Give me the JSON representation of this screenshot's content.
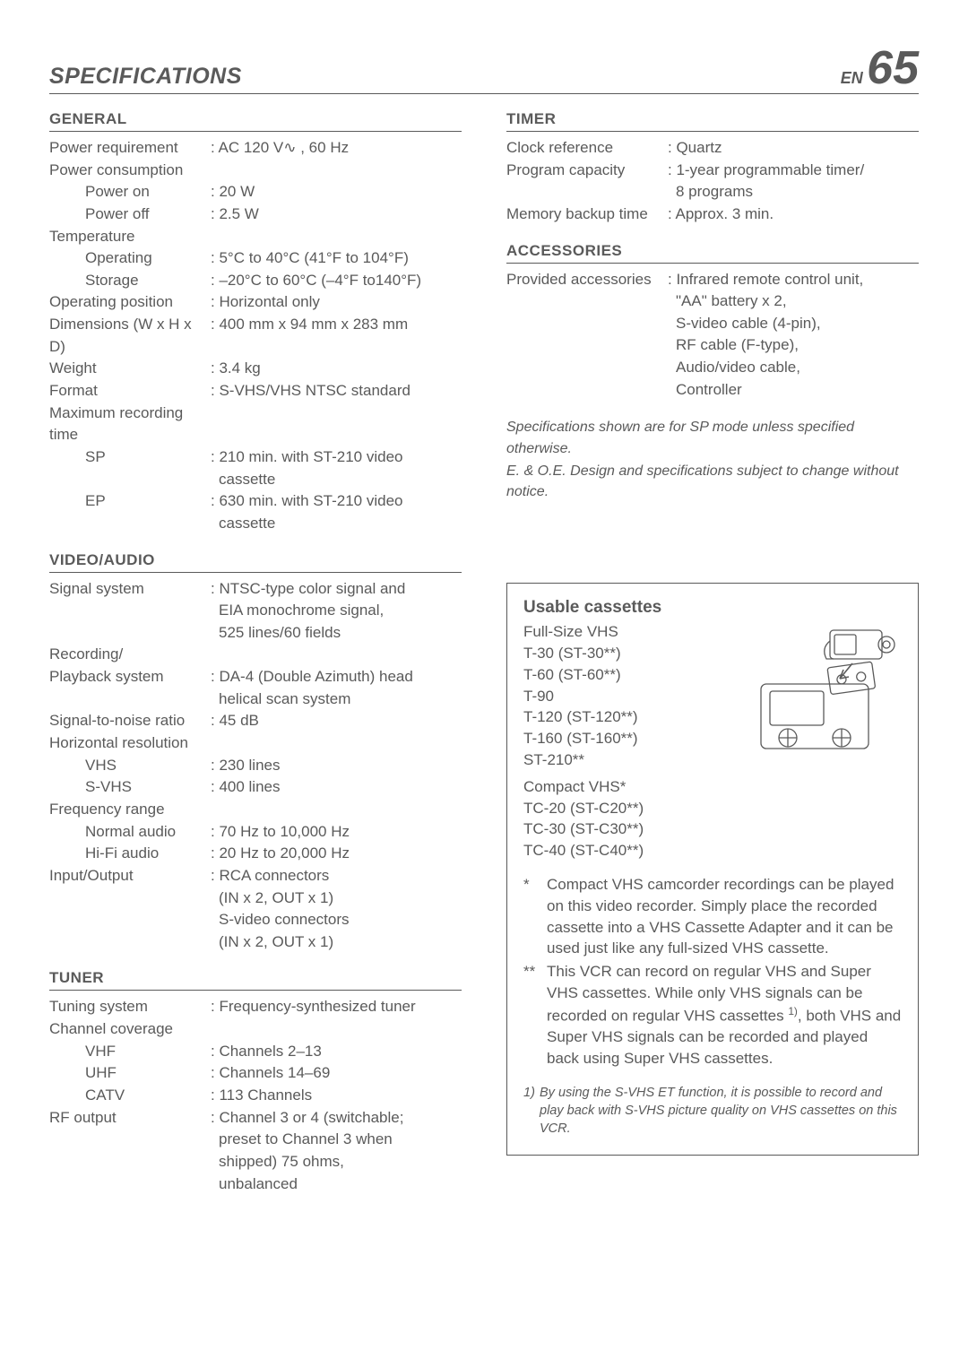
{
  "header": {
    "title": "SPECIFICATIONS",
    "pageEn": "EN",
    "pageNum": "65"
  },
  "left": {
    "general": {
      "head": "GENERAL",
      "rows": [
        {
          "l": "Power requirement",
          "v": ": AC 120 V∿ , 60 Hz"
        },
        {
          "l": "Power consumption",
          "v": ""
        },
        {
          "l": "Power on",
          "v": ": 20 W",
          "indent": true
        },
        {
          "l": "Power off",
          "v": ": 2.5 W",
          "indent": true
        },
        {
          "l": "Temperature",
          "v": ""
        },
        {
          "l": "Operating",
          "v": ": 5°C to 40°C (41°F to 104°F)",
          "indent": true
        },
        {
          "l": "Storage",
          "v": ": –20°C to 60°C (–4°F to140°F)",
          "indent": true
        },
        {
          "l": "Operating position",
          "v": ": Horizontal only"
        },
        {
          "l": "Dimensions (W x H x D)",
          "v": ": 400 mm x 94 mm x 283 mm"
        },
        {
          "l": "Weight",
          "v": ": 3.4 kg"
        },
        {
          "l": "Format",
          "v": ": S-VHS/VHS NTSC standard"
        },
        {
          "l": "Maximum recording time",
          "v": ""
        },
        {
          "l": "SP",
          "v": ": 210 min. with ST-210 video",
          "indent": true
        },
        {
          "l": "",
          "v": "cassette",
          "cont": true
        },
        {
          "l": "EP",
          "v": ": 630 min. with ST-210 video",
          "indent": true
        },
        {
          "l": "",
          "v": "cassette",
          "cont": true
        }
      ]
    },
    "video": {
      "head": "VIDEO/AUDIO",
      "rows": [
        {
          "l": "Signal system",
          "v": ": NTSC-type color signal and"
        },
        {
          "l": "",
          "v": "EIA monochrome signal,",
          "cont": true
        },
        {
          "l": "",
          "v": "525 lines/60 fields",
          "cont": true
        },
        {
          "l": "Recording/",
          "v": ""
        },
        {
          "l": "Playback system",
          "v": ": DA-4 (Double Azimuth) head"
        },
        {
          "l": "",
          "v": "helical scan system",
          "cont": true
        },
        {
          "l": "Signal-to-noise ratio",
          "v": ": 45 dB"
        },
        {
          "l": "Horizontal resolution",
          "v": ""
        },
        {
          "l": "VHS",
          "v": ": 230 lines",
          "indent": true
        },
        {
          "l": "S-VHS",
          "v": ": 400 lines",
          "indent": true
        },
        {
          "l": "Frequency range",
          "v": ""
        },
        {
          "l": "Normal audio",
          "v": ": 70 Hz to 10,000 Hz",
          "indent": true
        },
        {
          "l": "Hi-Fi audio",
          "v": ": 20 Hz to 20,000 Hz",
          "indent": true
        },
        {
          "l": "Input/Output",
          "v": ": RCA connectors"
        },
        {
          "l": "",
          "v": "(IN x 2, OUT x 1)",
          "cont": true
        },
        {
          "l": "",
          "v": "S-video connectors",
          "cont": true
        },
        {
          "l": "",
          "v": "(IN x 2, OUT x 1)",
          "cont": true
        }
      ]
    },
    "tuner": {
      "head": "TUNER",
      "rows": [
        {
          "l": "Tuning system",
          "v": ": Frequency-synthesized tuner"
        },
        {
          "l": "Channel coverage",
          "v": ""
        },
        {
          "l": "VHF",
          "v": ": Channels 2–13",
          "indent": true
        },
        {
          "l": "UHF",
          "v": ": Channels 14–69",
          "indent": true
        },
        {
          "l": "CATV",
          "v": ": 113 Channels",
          "indent": true
        },
        {
          "l": "RF output",
          "v": ": Channel 3 or 4 (switchable;"
        },
        {
          "l": "",
          "v": "preset to Channel 3 when",
          "cont": true
        },
        {
          "l": "",
          "v": "shipped) 75 ohms,",
          "cont": true
        },
        {
          "l": "",
          "v": "unbalanced",
          "cont": true
        }
      ]
    }
  },
  "right": {
    "timer": {
      "head": "TIMER",
      "rows": [
        {
          "l": "Clock reference",
          "v": ": Quartz"
        },
        {
          "l": "Program capacity",
          "v": ": 1-year programmable timer/"
        },
        {
          "l": "",
          "v": "8 programs",
          "cont": true
        },
        {
          "l": "Memory backup time",
          "v": ": Approx. 3 min."
        }
      ]
    },
    "accessories": {
      "head": "ACCESSORIES",
      "rows": [
        {
          "l": "Provided accessories",
          "v": ": Infrared remote control unit,"
        },
        {
          "l": "",
          "v": "\"AA\" battery x 2,",
          "cont": true
        },
        {
          "l": "",
          "v": "S-video cable (4-pin),",
          "cont": true
        },
        {
          "l": "",
          "v": "RF cable (F-type),",
          "cont": true
        },
        {
          "l": "",
          "v": "Audio/video cable,",
          "cont": true
        },
        {
          "l": "",
          "v": "Controller",
          "cont": true
        }
      ]
    },
    "notes": [
      "Specifications shown are for SP mode unless specified otherwise.",
      "E. & O.E. Design and specifications subject to change without notice."
    ]
  },
  "cassette": {
    "title": "Usable cassettes",
    "sub1": "Full-Size VHS",
    "list1": [
      "T-30 (ST-30**)",
      "T-60 (ST-60**)",
      "T-90",
      "T-120 (ST-120**)",
      "T-160 (ST-160**)",
      "ST-210**"
    ],
    "sub2": "Compact VHS*",
    "list2": [
      "TC-20 (ST-C20**)",
      "TC-30 (ST-C30**)",
      "TC-40 (ST-C40**)"
    ],
    "note1mark": "*",
    "note1": "Compact VHS camcorder recordings can be played on this video recorder. Simply place the recorded cassette into a VHS Cassette Adapter and it can be used just like any full-sized VHS cassette.",
    "note2mark": "**",
    "note2": "This VCR can record on regular VHS and Super VHS cassettes. While only VHS signals can be recorded on regular VHS cassettes 1), both VHS and Super VHS signals can be recorded and played back using Super VHS cassettes.",
    "footmark": "1)",
    "foot": "By using the S-VHS ET function, it is possible to record and play back with S-VHS picture quality on VHS cassettes on this VCR."
  },
  "colors": {
    "text": "#5a5a5a",
    "bg": "#ffffff",
    "rule": "#5a5a5a"
  }
}
